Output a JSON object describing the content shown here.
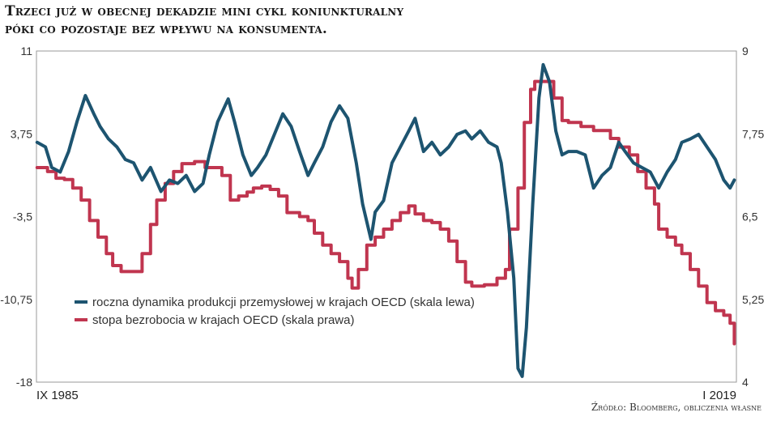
{
  "title_line1": "Trzeci już w obecnej dekadzie mini cykl koniunkturalny",
  "title_line2": "póki co pozostaje bez wpływu na konsumenta.",
  "source": "Źródło: Bloomberg, obliczenia własne",
  "chart_data": {
    "type": "line",
    "title": "Trzeci już w obecnej dekadzie mini cykl koniunkturalny póki co pozostaje bez wpływu na konsumenta.",
    "x_range": [
      1985.67,
      2019.0
    ],
    "x_tick_labels": [
      "IX 1985",
      "I 2019"
    ],
    "y_left": {
      "range": [
        -18,
        11
      ],
      "ticks": [
        11,
        3.75,
        -3.5,
        -10.75,
        -18
      ],
      "tick_labels": [
        "11",
        "3,75",
        "-3,5",
        "-10,75",
        "-18"
      ]
    },
    "y_right": {
      "range": [
        4,
        9
      ],
      "ticks": [
        9,
        7.75,
        6.5,
        5.25,
        4
      ],
      "tick_labels": [
        "9",
        "7,75",
        "6,5",
        "5,25",
        "4"
      ]
    },
    "grid": false,
    "legend_position": "bottom-left",
    "series": [
      {
        "name": "roczna dynamika produkcji przemysłowej w krajach OECD (skala lewa)",
        "axis": "left",
        "color": "#1d5470",
        "x": [
          1985.7,
          1986.1,
          1986.4,
          1986.8,
          1987.2,
          1987.6,
          1988.0,
          1988.4,
          1988.7,
          1989.1,
          1989.5,
          1989.9,
          1990.3,
          1990.7,
          1991.1,
          1991.6,
          1992.0,
          1992.4,
          1992.8,
          1993.2,
          1993.6,
          1993.9,
          1994.3,
          1994.8,
          1995.1,
          1995.5,
          1995.9,
          1996.2,
          1996.6,
          1997.0,
          1997.4,
          1997.8,
          1998.2,
          1998.6,
          1998.9,
          1999.3,
          1999.7,
          2000.1,
          2000.5,
          2000.9,
          2001.2,
          2001.6,
          2001.8,
          2002.2,
          2002.6,
          2003.0,
          2003.4,
          2003.7,
          2004.1,
          2004.5,
          2004.9,
          2005.3,
          2005.7,
          2006.1,
          2006.4,
          2006.8,
          2007.2,
          2007.6,
          2007.8,
          2008.1,
          2008.4,
          2008.6,
          2008.8,
          2009.0,
          2009.3,
          2009.6,
          2009.8,
          2010.1,
          2010.4,
          2010.7,
          2011.0,
          2011.4,
          2011.8,
          2012.2,
          2012.6,
          2013.0,
          2013.4,
          2013.7,
          2014.1,
          2014.5,
          2014.9,
          2015.3,
          2015.7,
          2016.1,
          2016.4,
          2016.8,
          2017.2,
          2017.6,
          2018.0,
          2018.4,
          2018.7,
          2018.9
        ],
        "values": [
          3.0,
          2.6,
          0.8,
          0.4,
          2.2,
          4.8,
          7.1,
          5.5,
          4.4,
          3.3,
          2.6,
          1.5,
          1.2,
          -0.3,
          0.8,
          -1.3,
          -0.3,
          -0.6,
          0.1,
          -1.3,
          -0.6,
          1.9,
          4.8,
          6.8,
          4.8,
          1.9,
          0.1,
          0.8,
          1.9,
          3.7,
          5.5,
          4.4,
          2.2,
          0.1,
          1.2,
          2.6,
          4.8,
          6.2,
          5.1,
          1.2,
          -2.4,
          -5.5,
          -3.1,
          -2.1,
          1.2,
          2.6,
          4.0,
          5.1,
          2.2,
          3.0,
          1.9,
          2.6,
          3.7,
          4.0,
          3.3,
          4.0,
          3.0,
          2.6,
          1.2,
          -3.1,
          -8.9,
          -16.8,
          -17.5,
          -13.2,
          -2.4,
          6.9,
          9.8,
          8.3,
          4.0,
          1.9,
          2.2,
          2.2,
          1.9,
          -1.0,
          0.1,
          0.8,
          3.0,
          2.2,
          1.2,
          0.8,
          0.4,
          -1.0,
          0.4,
          1.5,
          3.0,
          3.3,
          3.7,
          2.6,
          1.5,
          -0.3,
          -1.0,
          -0.3
        ]
      },
      {
        "name": "stopa bezrobocia w krajach OECD (skala prawa)",
        "axis": "right",
        "color": "#c0354f",
        "x": [
          1985.7,
          1986.2,
          1986.6,
          1987.0,
          1987.4,
          1987.8,
          1988.2,
          1988.6,
          1989.0,
          1989.3,
          1989.7,
          1990.3,
          1990.7,
          1991.1,
          1991.4,
          1991.8,
          1992.2,
          1992.6,
          1993.2,
          1993.7,
          1994.1,
          1994.5,
          1994.9,
          1995.3,
          1995.7,
          1996.0,
          1996.4,
          1996.8,
          1997.2,
          1997.6,
          1998.2,
          1998.6,
          1998.9,
          1999.3,
          1999.7,
          2000.1,
          2000.5,
          2000.7,
          2001.0,
          2001.4,
          2001.8,
          2002.2,
          2002.6,
          2003.0,
          2003.4,
          2003.7,
          2004.1,
          2004.5,
          2004.9,
          2005.3,
          2005.7,
          2006.1,
          2006.4,
          2007.0,
          2007.6,
          2008.0,
          2008.2,
          2008.6,
          2008.9,
          2009.2,
          2009.4,
          2009.9,
          2010.3,
          2010.7,
          2011.0,
          2011.6,
          2012.2,
          2012.6,
          2013.0,
          2013.4,
          2013.9,
          2014.3,
          2014.7,
          2015.1,
          2015.3,
          2015.7,
          2016.1,
          2016.4,
          2016.8,
          2017.2,
          2017.6,
          2018.0,
          2018.4,
          2018.7,
          2018.9
        ],
        "values": [
          7.24,
          7.18,
          7.08,
          7.06,
          6.93,
          6.75,
          6.44,
          6.19,
          5.94,
          5.76,
          5.67,
          5.67,
          5.94,
          6.38,
          6.75,
          7.0,
          7.18,
          7.3,
          7.33,
          7.24,
          7.24,
          7.12,
          6.75,
          6.81,
          6.87,
          6.93,
          6.96,
          6.91,
          6.81,
          6.56,
          6.5,
          6.44,
          6.25,
          6.07,
          5.94,
          5.82,
          5.57,
          5.42,
          5.7,
          6.07,
          6.19,
          6.31,
          6.44,
          6.56,
          6.66,
          6.54,
          6.44,
          6.41,
          6.31,
          6.13,
          5.82,
          5.51,
          5.45,
          5.47,
          5.57,
          5.7,
          6.31,
          6.93,
          7.92,
          8.42,
          8.54,
          8.54,
          8.29,
          7.95,
          7.92,
          7.86,
          7.8,
          7.8,
          7.68,
          7.55,
          7.43,
          7.18,
          6.93,
          6.69,
          6.31,
          6.19,
          6.07,
          5.94,
          5.7,
          5.45,
          5.2,
          5.08,
          5.01,
          4.89,
          4.58
        ]
      }
    ]
  }
}
